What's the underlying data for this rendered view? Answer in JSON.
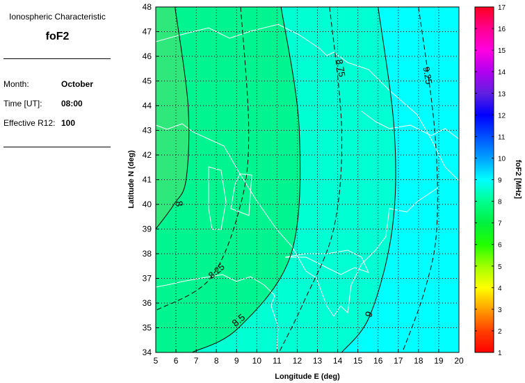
{
  "side": {
    "heading": "Ionospheric Characteristic",
    "parameter": "foF2",
    "fields": [
      {
        "label": "Month:",
        "value": "October"
      },
      {
        "label": "Time [UT]:",
        "value": "08:00"
      },
      {
        "label": "Effective R12:",
        "value": "100"
      }
    ]
  },
  "chart_data": {
    "type": "contour",
    "xlabel": "Longitude E (deg)",
    "ylabel": "Latitude N (deg)",
    "xlim": [
      5,
      20
    ],
    "ylim": [
      34,
      48
    ],
    "xticks": [
      5,
      6,
      7,
      8,
      9,
      10,
      11,
      12,
      13,
      14,
      15,
      16,
      17,
      18,
      19,
      20
    ],
    "yticks": [
      34,
      35,
      36,
      37,
      38,
      39,
      40,
      41,
      42,
      43,
      44,
      45,
      46,
      47,
      48
    ],
    "grid": true,
    "contours": [
      {
        "level": "8",
        "style": "solid",
        "points": [
          [
            5.95,
            48
          ],
          [
            6.6,
            44
          ],
          [
            6.5,
            41
          ],
          [
            5.9,
            40
          ],
          [
            5,
            39
          ]
        ]
      },
      {
        "level": "8.25",
        "style": "dashed",
        "points": [
          [
            9.2,
            48
          ],
          [
            9.6,
            43
          ],
          [
            9.2,
            40
          ],
          [
            7.7,
            37
          ],
          [
            5,
            35.7
          ]
        ]
      },
      {
        "level": "8.5",
        "style": "solid",
        "points": [
          [
            11.2,
            48
          ],
          [
            12.1,
            43
          ],
          [
            11.7,
            38
          ],
          [
            9.1,
            35
          ],
          [
            6.8,
            34
          ]
        ]
      },
      {
        "level": "8.75",
        "style": "dashed",
        "points": [
          [
            13.6,
            48
          ],
          [
            14.2,
            43
          ],
          [
            13.8,
            39
          ],
          [
            12.3,
            36
          ],
          [
            11.1,
            34
          ]
        ]
      },
      {
        "level": "9",
        "style": "solid",
        "points": [
          [
            16,
            48
          ],
          [
            16.8,
            43
          ],
          [
            16.7,
            39
          ],
          [
            15.6,
            35.5
          ],
          [
            14.2,
            34
          ]
        ]
      },
      {
        "level": "9.25",
        "style": "dashed",
        "points": [
          [
            18,
            48
          ],
          [
            18.8,
            43
          ],
          [
            18.9,
            39
          ],
          [
            18.3,
            36.5
          ],
          [
            17.2,
            34
          ]
        ]
      }
    ],
    "fill_bands": [
      {
        "range": "<8",
        "color": "#2ee87c"
      },
      {
        "range": "8-8.5",
        "color": "#00f590"
      },
      {
        "range": "8.5-9",
        "color": "#00ffd2"
      },
      {
        "range": ">9",
        "color": "#00ffff"
      }
    ],
    "colorbar": {
      "label": "foF2 [MHz]",
      "range": [
        1,
        17
      ],
      "ticks": [
        1,
        2,
        3,
        4,
        5,
        6,
        7,
        8,
        9,
        10,
        11,
        12,
        13,
        14,
        15,
        16,
        17
      ],
      "colors": [
        "#ff0000",
        "#ff4000",
        "#ffa000",
        "#ffff00",
        "#a0ff00",
        "#20ff00",
        "#00f040",
        "#00ff90",
        "#00ffff",
        "#00a0ff",
        "#0050ff",
        "#0000ff",
        "#6020e0",
        "#b000f0",
        "#ff00e0",
        "#ff0090",
        "#ff0020"
      ]
    }
  }
}
